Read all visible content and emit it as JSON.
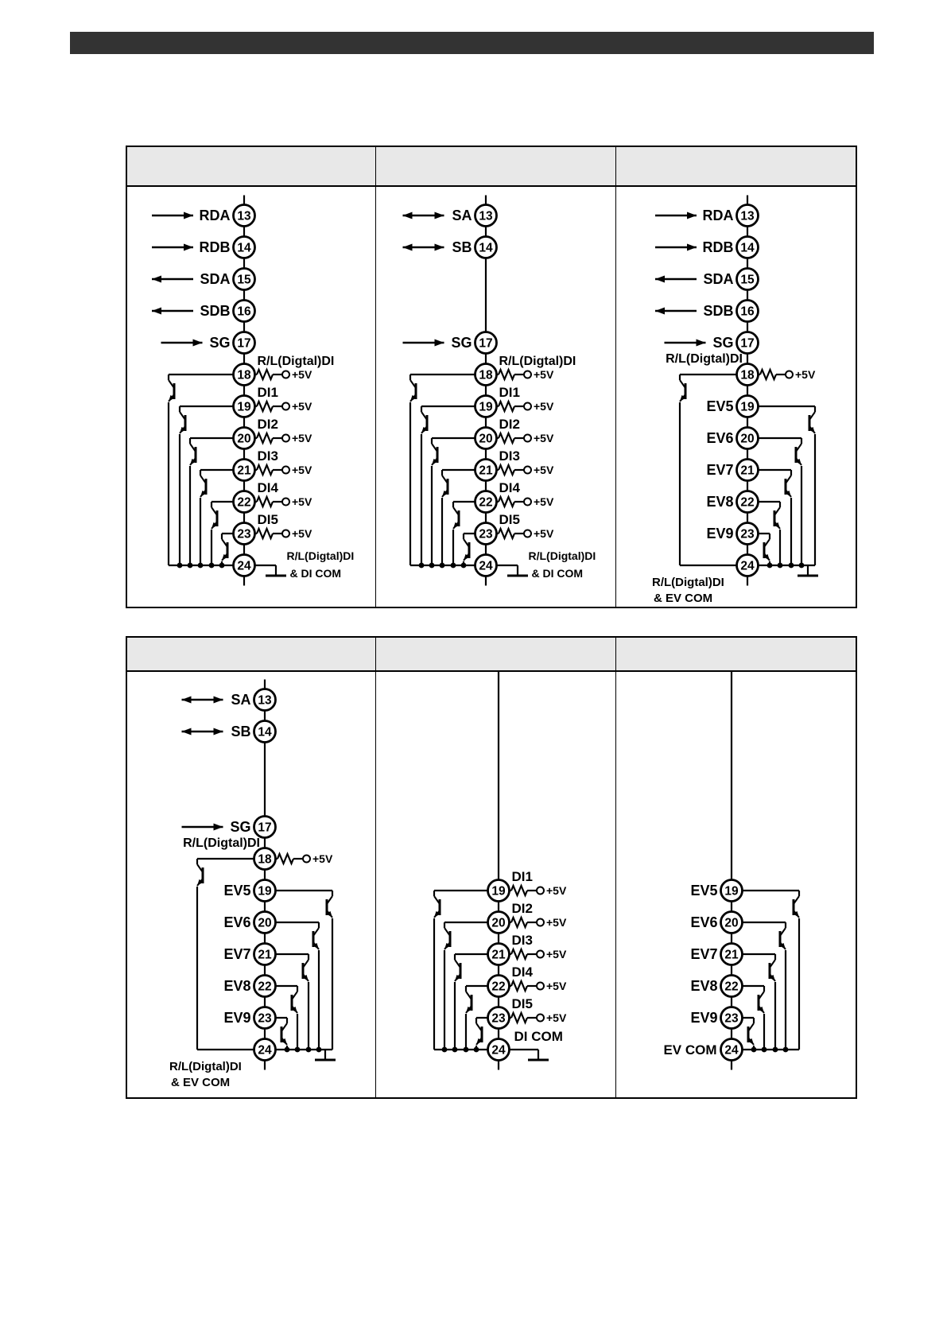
{
  "page": {
    "top_bar_text": "",
    "colors": {
      "top_bar": "#333333",
      "table_header_fill": "#e8e8e8",
      "diagram_line": "#000000"
    }
  },
  "tables": [
    {
      "name": "table-1",
      "header_cells": [
        "",
        "",
        ""
      ],
      "diagram_ids": [
        "t1c1",
        "t1c2",
        "t1c3"
      ]
    },
    {
      "name": "table-2",
      "header_cells": [
        "",
        "",
        ""
      ],
      "diagram_ids": [
        "t2c1",
        "t2c2",
        "t2c3"
      ]
    }
  ],
  "diagrams": {
    "t1c1": {
      "terminals": [
        {
          "num": "13",
          "label": "RDA",
          "arrow": "in"
        },
        {
          "num": "14",
          "label": "RDB",
          "arrow": "in"
        },
        {
          "num": "15",
          "label": "SDA",
          "arrow": "out"
        },
        {
          "num": "16",
          "label": "SDB",
          "arrow": "out"
        },
        {
          "num": "17",
          "label": "SG",
          "arrow": "in"
        },
        {
          "num": "18",
          "label": "R/L(Digtal)DI",
          "type": "di",
          "pullup": "+5V"
        },
        {
          "num": "19",
          "label": "DI1",
          "type": "di",
          "pullup": "+5V"
        },
        {
          "num": "20",
          "label": "DI2",
          "type": "di",
          "pullup": "+5V"
        },
        {
          "num": "21",
          "label": "DI3",
          "type": "di",
          "pullup": "+5V"
        },
        {
          "num": "22",
          "label": "DI4",
          "type": "di",
          "pullup": "+5V"
        },
        {
          "num": "23",
          "label": "DI5",
          "type": "di",
          "pullup": "+5V"
        },
        {
          "num": "24",
          "type": "common",
          "label_lines": [
            "R/L(Digtal)DI",
            "& DI COM"
          ],
          "label_side": "right",
          "ground": "step-right"
        }
      ]
    },
    "t1c2": {
      "terminals": [
        {
          "num": "13",
          "label": "SA",
          "arrow": "both"
        },
        {
          "num": "14",
          "label": "SB",
          "arrow": "both"
        },
        {
          "num": "17",
          "label": "SG",
          "arrow": "in"
        },
        {
          "num": "18",
          "label": "R/L(Digtal)DI",
          "type": "di",
          "pullup": "+5V"
        },
        {
          "num": "19",
          "label": "DI1",
          "type": "di",
          "pullup": "+5V"
        },
        {
          "num": "20",
          "label": "DI2",
          "type": "di",
          "pullup": "+5V"
        },
        {
          "num": "21",
          "label": "DI3",
          "type": "di",
          "pullup": "+5V"
        },
        {
          "num": "22",
          "label": "DI4",
          "type": "di",
          "pullup": "+5V"
        },
        {
          "num": "23",
          "label": "DI5",
          "type": "di",
          "pullup": "+5V"
        },
        {
          "num": "24",
          "type": "common",
          "label_lines": [
            "R/L(Digtal)DI",
            "& DI COM"
          ],
          "label_side": "right",
          "ground": "step-right"
        }
      ]
    },
    "t1c3": {
      "terminals": [
        {
          "num": "13",
          "label": "RDA",
          "arrow": "in"
        },
        {
          "num": "14",
          "label": "RDB",
          "arrow": "in"
        },
        {
          "num": "15",
          "label": "SDA",
          "arrow": "out"
        },
        {
          "num": "16",
          "label": "SDB",
          "arrow": "out"
        },
        {
          "num": "17",
          "label": "SG",
          "arrow": "in"
        },
        {
          "num": "18",
          "label": "R/L(Digtal)DI",
          "type": "rl",
          "pullup": "+5V"
        },
        {
          "num": "19",
          "label": "EV5",
          "type": "ev"
        },
        {
          "num": "20",
          "label": "EV6",
          "type": "ev"
        },
        {
          "num": "21",
          "label": "EV7",
          "type": "ev"
        },
        {
          "num": "22",
          "label": "EV8",
          "type": "ev"
        },
        {
          "num": "23",
          "label": "EV9",
          "type": "ev"
        },
        {
          "num": "24",
          "type": "common",
          "label_lines": [
            "R/L(Digtal)DI",
            "& EV COM"
          ],
          "label_side": "bottom-left",
          "ground": "end-right"
        }
      ]
    },
    "t2c1": {
      "terminals": [
        {
          "num": "13",
          "label": "SA",
          "arrow": "both"
        },
        {
          "num": "14",
          "label": "SB",
          "arrow": "both"
        },
        {
          "num": "17",
          "label": "SG",
          "arrow": "in"
        },
        {
          "num": "18",
          "label": "R/L(Digtal)DI",
          "type": "rl",
          "pullup": "+5V"
        },
        {
          "num": "19",
          "label": "EV5",
          "type": "ev"
        },
        {
          "num": "20",
          "label": "EV6",
          "type": "ev"
        },
        {
          "num": "21",
          "label": "EV7",
          "type": "ev"
        },
        {
          "num": "22",
          "label": "EV8",
          "type": "ev"
        },
        {
          "num": "23",
          "label": "EV9",
          "type": "ev"
        },
        {
          "num": "24",
          "type": "common",
          "label_lines": [
            "R/L(Digtal)DI",
            "& EV COM"
          ],
          "label_side": "bottom-left",
          "ground": "end-right"
        }
      ]
    },
    "t2c2": {
      "top_line": true,
      "terminals": [
        {
          "num": "19",
          "label": "DI1",
          "type": "di",
          "pullup": "+5V"
        },
        {
          "num": "20",
          "label": "DI2",
          "type": "di",
          "pullup": "+5V"
        },
        {
          "num": "21",
          "label": "DI3",
          "type": "di",
          "pullup": "+5V"
        },
        {
          "num": "22",
          "label": "DI4",
          "type": "di",
          "pullup": "+5V"
        },
        {
          "num": "23",
          "label": "DI5",
          "type": "di",
          "pullup": "+5V"
        },
        {
          "num": "24",
          "type": "common",
          "label_lines": [
            "DI COM"
          ],
          "label_side": "above-right",
          "ground": "step-right"
        }
      ]
    },
    "t2c3": {
      "top_line": true,
      "terminals": [
        {
          "num": "19",
          "label": "EV5",
          "type": "ev"
        },
        {
          "num": "20",
          "label": "EV6",
          "type": "ev"
        },
        {
          "num": "21",
          "label": "EV7",
          "type": "ev"
        },
        {
          "num": "22",
          "label": "EV8",
          "type": "ev"
        },
        {
          "num": "23",
          "label": "EV9",
          "type": "ev"
        },
        {
          "num": "24",
          "type": "common",
          "label_lines": [
            "EV COM"
          ],
          "label_side": "left"
        }
      ]
    }
  }
}
